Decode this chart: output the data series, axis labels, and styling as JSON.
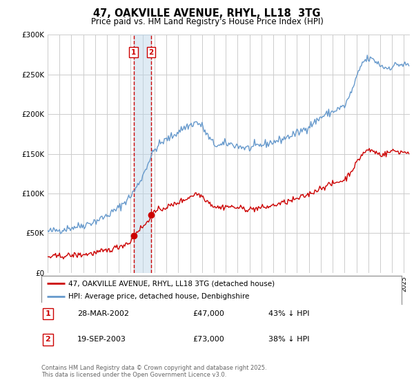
{
  "title": "47, OAKVILLE AVENUE, RHYL, LL18  3TG",
  "subtitle": "Price paid vs. HM Land Registry's House Price Index (HPI)",
  "ylabel_ticks": [
    "£0",
    "£50K",
    "£100K",
    "£150K",
    "£200K",
    "£250K",
    "£300K"
  ],
  "ylim": [
    0,
    300000
  ],
  "xlim_start": 1995.0,
  "xlim_end": 2025.5,
  "transaction1": {
    "date_num": 2002.24,
    "price": 47000,
    "label": "1",
    "date_str": "28-MAR-2002",
    "price_str": "£47,000",
    "pct_str": "43% ↓ HPI"
  },
  "transaction2": {
    "date_num": 2003.72,
    "price": 73000,
    "label": "2",
    "date_str": "19-SEP-2003",
    "price_str": "£73,000",
    "pct_str": "38% ↓ HPI"
  },
  "legend_line1": "47, OAKVILLE AVENUE, RHYL, LL18 3TG (detached house)",
  "legend_line2": "HPI: Average price, detached house, Denbighshire",
  "footer": "Contains HM Land Registry data © Crown copyright and database right 2025.\nThis data is licensed under the Open Government Licence v3.0.",
  "red_line_color": "#cc0000",
  "blue_line_color": "#6699cc",
  "bg_color": "#ffffff",
  "grid_color": "#cccccc",
  "shade_color": "#b8d4e8"
}
